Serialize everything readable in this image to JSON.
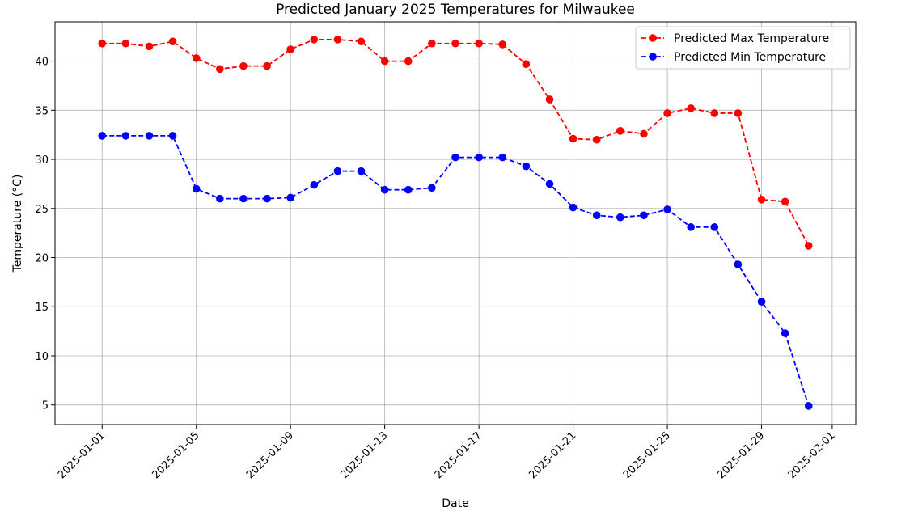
{
  "chart_data": {
    "type": "line",
    "title": "Predicted January 2025 Temperatures for Milwaukee",
    "xlabel": "Date",
    "ylabel": "Temperature (°C)",
    "x": [
      "2025-01-01",
      "2025-01-02",
      "2025-01-03",
      "2025-01-04",
      "2025-01-05",
      "2025-01-06",
      "2025-01-07",
      "2025-01-08",
      "2025-01-09",
      "2025-01-10",
      "2025-01-11",
      "2025-01-12",
      "2025-01-13",
      "2025-01-14",
      "2025-01-15",
      "2025-01-16",
      "2025-01-17",
      "2025-01-18",
      "2025-01-19",
      "2025-01-20",
      "2025-01-21",
      "2025-01-22",
      "2025-01-23",
      "2025-01-24",
      "2025-01-25",
      "2025-01-26",
      "2025-01-27",
      "2025-01-28",
      "2025-01-29",
      "2025-01-30",
      "2025-01-31"
    ],
    "xlim": [
      "2024-12-30",
      "2025-02-02"
    ],
    "xticks": [
      "2025-01-01",
      "2025-01-05",
      "2025-01-09",
      "2025-01-13",
      "2025-01-17",
      "2025-01-21",
      "2025-01-25",
      "2025-01-29",
      "2025-02-01"
    ],
    "ylim": [
      3,
      44
    ],
    "yticks": [
      5,
      10,
      15,
      20,
      25,
      30,
      35,
      40
    ],
    "grid": true,
    "legend_position": "top-right",
    "series": [
      {
        "name": "Predicted Max Temperature",
        "color": "#ff0000",
        "values": [
          41.8,
          41.8,
          41.5,
          42.0,
          40.3,
          39.2,
          39.5,
          39.5,
          41.2,
          42.2,
          42.2,
          42.0,
          40.0,
          40.0,
          41.8,
          41.8,
          41.8,
          41.7,
          39.7,
          36.1,
          32.1,
          32.0,
          32.9,
          32.6,
          34.7,
          35.2,
          34.7,
          34.7,
          25.9,
          25.7,
          21.2
        ]
      },
      {
        "name": "Predicted Min Temperature",
        "color": "#0000ff",
        "values": [
          32.4,
          32.4,
          32.4,
          32.4,
          27.0,
          26.0,
          26.0,
          26.0,
          26.1,
          27.4,
          28.8,
          28.8,
          26.9,
          26.9,
          27.1,
          30.2,
          30.2,
          30.2,
          29.3,
          27.5,
          25.1,
          24.3,
          24.1,
          24.3,
          24.9,
          23.1,
          23.1,
          19.3,
          15.5,
          12.3,
          4.9
        ]
      }
    ]
  }
}
